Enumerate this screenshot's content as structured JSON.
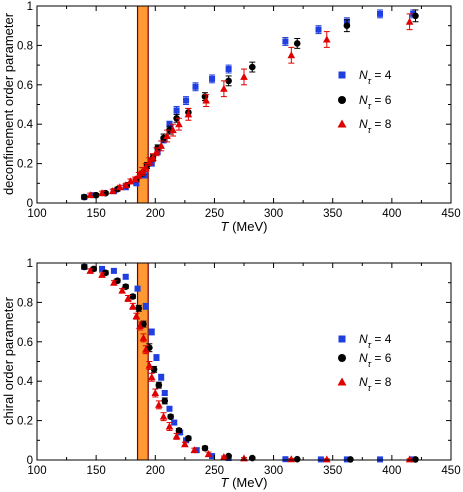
{
  "colors": {
    "nt4": "#1f3fe0",
    "nt6": "#000000",
    "nt8": "#e00000",
    "band_fill": "#ff9933",
    "band_edge": "#7a0000"
  },
  "chart_data": [
    {
      "type": "scatter",
      "ylabel": "deconfinement order parameter",
      "xlabel": "T (MeV)",
      "xlim": [
        100,
        450
      ],
      "ylim": [
        0,
        1
      ],
      "xticks": [
        100,
        150,
        200,
        250,
        300,
        350,
        400,
        450
      ],
      "yticks": [
        0,
        0.2,
        0.4,
        0.6,
        0.8,
        1
      ],
      "ytick_labels": [
        "0",
        "0.2",
        "0.4",
        "0.6",
        "0.8",
        "1"
      ],
      "grid": false,
      "legend_position": "center-right",
      "transition_band": [
        185,
        194
      ],
      "series": [
        {
          "name": "Nτ = 4",
          "marker": "square",
          "color": "#1f3fe0",
          "points": [
            [
              140,
              0.03,
              0.008
            ],
            [
              148,
              0.04,
              0.008
            ],
            [
              157,
              0.05,
              0.008
            ],
            [
              165,
              0.06,
              0.008
            ],
            [
              175,
              0.08,
              0.01
            ],
            [
              184,
              0.1,
              0.01
            ],
            [
              191,
              0.14,
              0.012
            ],
            [
              197,
              0.2,
              0.012
            ],
            [
              202,
              0.26,
              0.015
            ],
            [
              207,
              0.32,
              0.015
            ],
            [
              212,
              0.4,
              0.015
            ],
            [
              218,
              0.47,
              0.02
            ],
            [
              226,
              0.52,
              0.02
            ],
            [
              234,
              0.59,
              0.02
            ],
            [
              248,
              0.63,
              0.02
            ],
            [
              262,
              0.68,
              0.02
            ],
            [
              310,
              0.82,
              0.02
            ],
            [
              338,
              0.88,
              0.02
            ],
            [
              362,
              0.92,
              0.02
            ],
            [
              390,
              0.96,
              0.02
            ],
            [
              418,
              0.96,
              0.02
            ]
          ]
        },
        {
          "name": "Nτ = 6",
          "marker": "circle",
          "color": "#000000",
          "points": [
            [
              140,
              0.03,
              0.008
            ],
            [
              150,
              0.04,
              0.008
            ],
            [
              158,
              0.05,
              0.008
            ],
            [
              168,
              0.07,
              0.01
            ],
            [
              176,
              0.09,
              0.01
            ],
            [
              184,
              0.12,
              0.01
            ],
            [
              189,
              0.15,
              0.012
            ],
            [
              193,
              0.19,
              0.015
            ],
            [
              198,
              0.23,
              0.015
            ],
            [
              202,
              0.28,
              0.015
            ],
            [
              207,
              0.33,
              0.02
            ],
            [
              212,
              0.37,
              0.02
            ],
            [
              218,
              0.43,
              0.02
            ],
            [
              228,
              0.46,
              0.02
            ],
            [
              242,
              0.54,
              0.02
            ],
            [
              262,
              0.62,
              0.025
            ],
            [
              282,
              0.69,
              0.025
            ],
            [
              320,
              0.81,
              0.025
            ],
            [
              362,
              0.9,
              0.03
            ],
            [
              420,
              0.95,
              0.03
            ]
          ]
        },
        {
          "name": "Nτ = 8",
          "marker": "triangle",
          "color": "#e00000",
          "points": [
            [
              145,
              0.04,
              0.01
            ],
            [
              155,
              0.05,
              0.01
            ],
            [
              164,
              0.06,
              0.01
            ],
            [
              170,
              0.08,
              0.01
            ],
            [
              175,
              0.09,
              0.01
            ],
            [
              179,
              0.11,
              0.012
            ],
            [
              183,
              0.12,
              0.012
            ],
            [
              186,
              0.14,
              0.015
            ],
            [
              189,
              0.16,
              0.02
            ],
            [
              192,
              0.18,
              0.02
            ],
            [
              195,
              0.21,
              0.02
            ],
            [
              198,
              0.23,
              0.02
            ],
            [
              201,
              0.26,
              0.02
            ],
            [
              205,
              0.29,
              0.025
            ],
            [
              210,
              0.34,
              0.03
            ],
            [
              215,
              0.37,
              0.03
            ],
            [
              220,
              0.4,
              0.03
            ],
            [
              228,
              0.45,
              0.03
            ],
            [
              243,
              0.52,
              0.03
            ],
            [
              258,
              0.58,
              0.04
            ],
            [
              275,
              0.64,
              0.04
            ],
            [
              315,
              0.75,
              0.04
            ],
            [
              345,
              0.83,
              0.04
            ],
            [
              415,
              0.92,
              0.04
            ]
          ]
        }
      ]
    },
    {
      "type": "scatter",
      "ylabel": "chiral order parameter",
      "xlabel": "T (MeV)",
      "xlim": [
        100,
        450
      ],
      "ylim": [
        0,
        1
      ],
      "xticks": [
        100,
        150,
        200,
        250,
        300,
        350,
        400,
        450
      ],
      "yticks": [
        0,
        0.2,
        0.4,
        0.6,
        0.8,
        1
      ],
      "ytick_labels": [
        "0",
        "0.2",
        "0.4",
        "0.6",
        "0.8",
        "1"
      ],
      "grid": false,
      "legend_position": "center-right",
      "transition_band": [
        185,
        194
      ],
      "series": [
        {
          "name": "Nτ = 4",
          "marker": "square",
          "color": "#1f3fe0",
          "points": [
            [
              140,
              0.98,
              0.01
            ],
            [
              155,
              0.97,
              0.01
            ],
            [
              165,
              0.96,
              0.01
            ],
            [
              175,
              0.93,
              0.01
            ],
            [
              185,
              0.87,
              0.01
            ],
            [
              192,
              0.78,
              0.015
            ],
            [
              197,
              0.65,
              0.015
            ],
            [
              201,
              0.52,
              0.015
            ],
            [
              205,
              0.42,
              0.015
            ],
            [
              208,
              0.34,
              0.01
            ],
            [
              212,
              0.26,
              0.01
            ],
            [
              216,
              0.19,
              0.01
            ],
            [
              221,
              0.14,
              0.01
            ],
            [
              226,
              0.1,
              0.01
            ],
            [
              235,
              0.05,
              0.01
            ],
            [
              248,
              0.02,
              0.005
            ],
            [
              262,
              0.01,
              0.005
            ],
            [
              310,
              0.004,
              0.003
            ],
            [
              340,
              0.003,
              0.003
            ],
            [
              362,
              0.003,
              0.003
            ],
            [
              390,
              0.003,
              0.003
            ],
            [
              418,
              0.003,
              0.003
            ]
          ]
        },
        {
          "name": "Nτ = 6",
          "marker": "circle",
          "color": "#000000",
          "points": [
            [
              140,
              0.98,
              0.01
            ],
            [
              148,
              0.97,
              0.01
            ],
            [
              158,
              0.95,
              0.01
            ],
            [
              168,
              0.91,
              0.01
            ],
            [
              175,
              0.88,
              0.01
            ],
            [
              181,
              0.83,
              0.01
            ],
            [
              186,
              0.77,
              0.015
            ],
            [
              190,
              0.69,
              0.015
            ],
            [
              195,
              0.57,
              0.02
            ],
            [
              199,
              0.46,
              0.015
            ],
            [
              203,
              0.38,
              0.015
            ],
            [
              208,
              0.3,
              0.015
            ],
            [
              213,
              0.22,
              0.01
            ],
            [
              220,
              0.15,
              0.01
            ],
            [
              228,
              0.11,
              0.01
            ],
            [
              242,
              0.06,
              0.01
            ],
            [
              262,
              0.02,
              0.005
            ],
            [
              282,
              0.01,
              0.005
            ],
            [
              320,
              0.004,
              0.003
            ],
            [
              365,
              0.003,
              0.003
            ],
            [
              420,
              0.003,
              0.003
            ]
          ]
        },
        {
          "name": "Nτ = 8",
          "marker": "triangle",
          "color": "#e00000",
          "points": [
            [
              145,
              0.96,
              0.01
            ],
            [
              155,
              0.94,
              0.01
            ],
            [
              165,
              0.9,
              0.01
            ],
            [
              172,
              0.86,
              0.01
            ],
            [
              177,
              0.82,
              0.015
            ],
            [
              181,
              0.78,
              0.015
            ],
            [
              184,
              0.73,
              0.015
            ],
            [
              187,
              0.68,
              0.02
            ],
            [
              190,
              0.62,
              0.02
            ],
            [
              192,
              0.56,
              0.02
            ],
            [
              195,
              0.48,
              0.02
            ],
            [
              197,
              0.42,
              0.02
            ],
            [
              200,
              0.34,
              0.02
            ],
            [
              203,
              0.28,
              0.02
            ],
            [
              207,
              0.22,
              0.02
            ],
            [
              212,
              0.17,
              0.02
            ],
            [
              218,
              0.12,
              0.015
            ],
            [
              225,
              0.08,
              0.01
            ],
            [
              233,
              0.05,
              0.01
            ],
            [
              245,
              0.03,
              0.01
            ],
            [
              258,
              0.015,
              0.005
            ],
            [
              275,
              0.008,
              0.004
            ],
            [
              315,
              0.004,
              0.003
            ],
            [
              345,
              0.003,
              0.003
            ],
            [
              415,
              0.003,
              0.003
            ]
          ]
        }
      ]
    }
  ],
  "panels": [
    {
      "ylabel": "deconfinement order parameter",
      "xlabel_var": "T",
      "xlabel_unit": " (MeV)",
      "legend": [
        {
          "label_var": "N",
          "label_sub": "τ",
          "label_value": " = 4"
        },
        {
          "label_var": "N",
          "label_sub": "τ",
          "label_value": " = 6"
        },
        {
          "label_var": "N",
          "label_sub": "τ",
          "label_value": " = 8"
        }
      ]
    },
    {
      "ylabel": "chiral order parameter",
      "xlabel_var": "T",
      "xlabel_unit": " (MeV)",
      "legend": [
        {
          "label_var": "N",
          "label_sub": "τ",
          "label_value": " = 4"
        },
        {
          "label_var": "N",
          "label_sub": "τ",
          "label_value": " = 6"
        },
        {
          "label_var": "N",
          "label_sub": "τ",
          "label_value": " = 8"
        }
      ]
    }
  ]
}
